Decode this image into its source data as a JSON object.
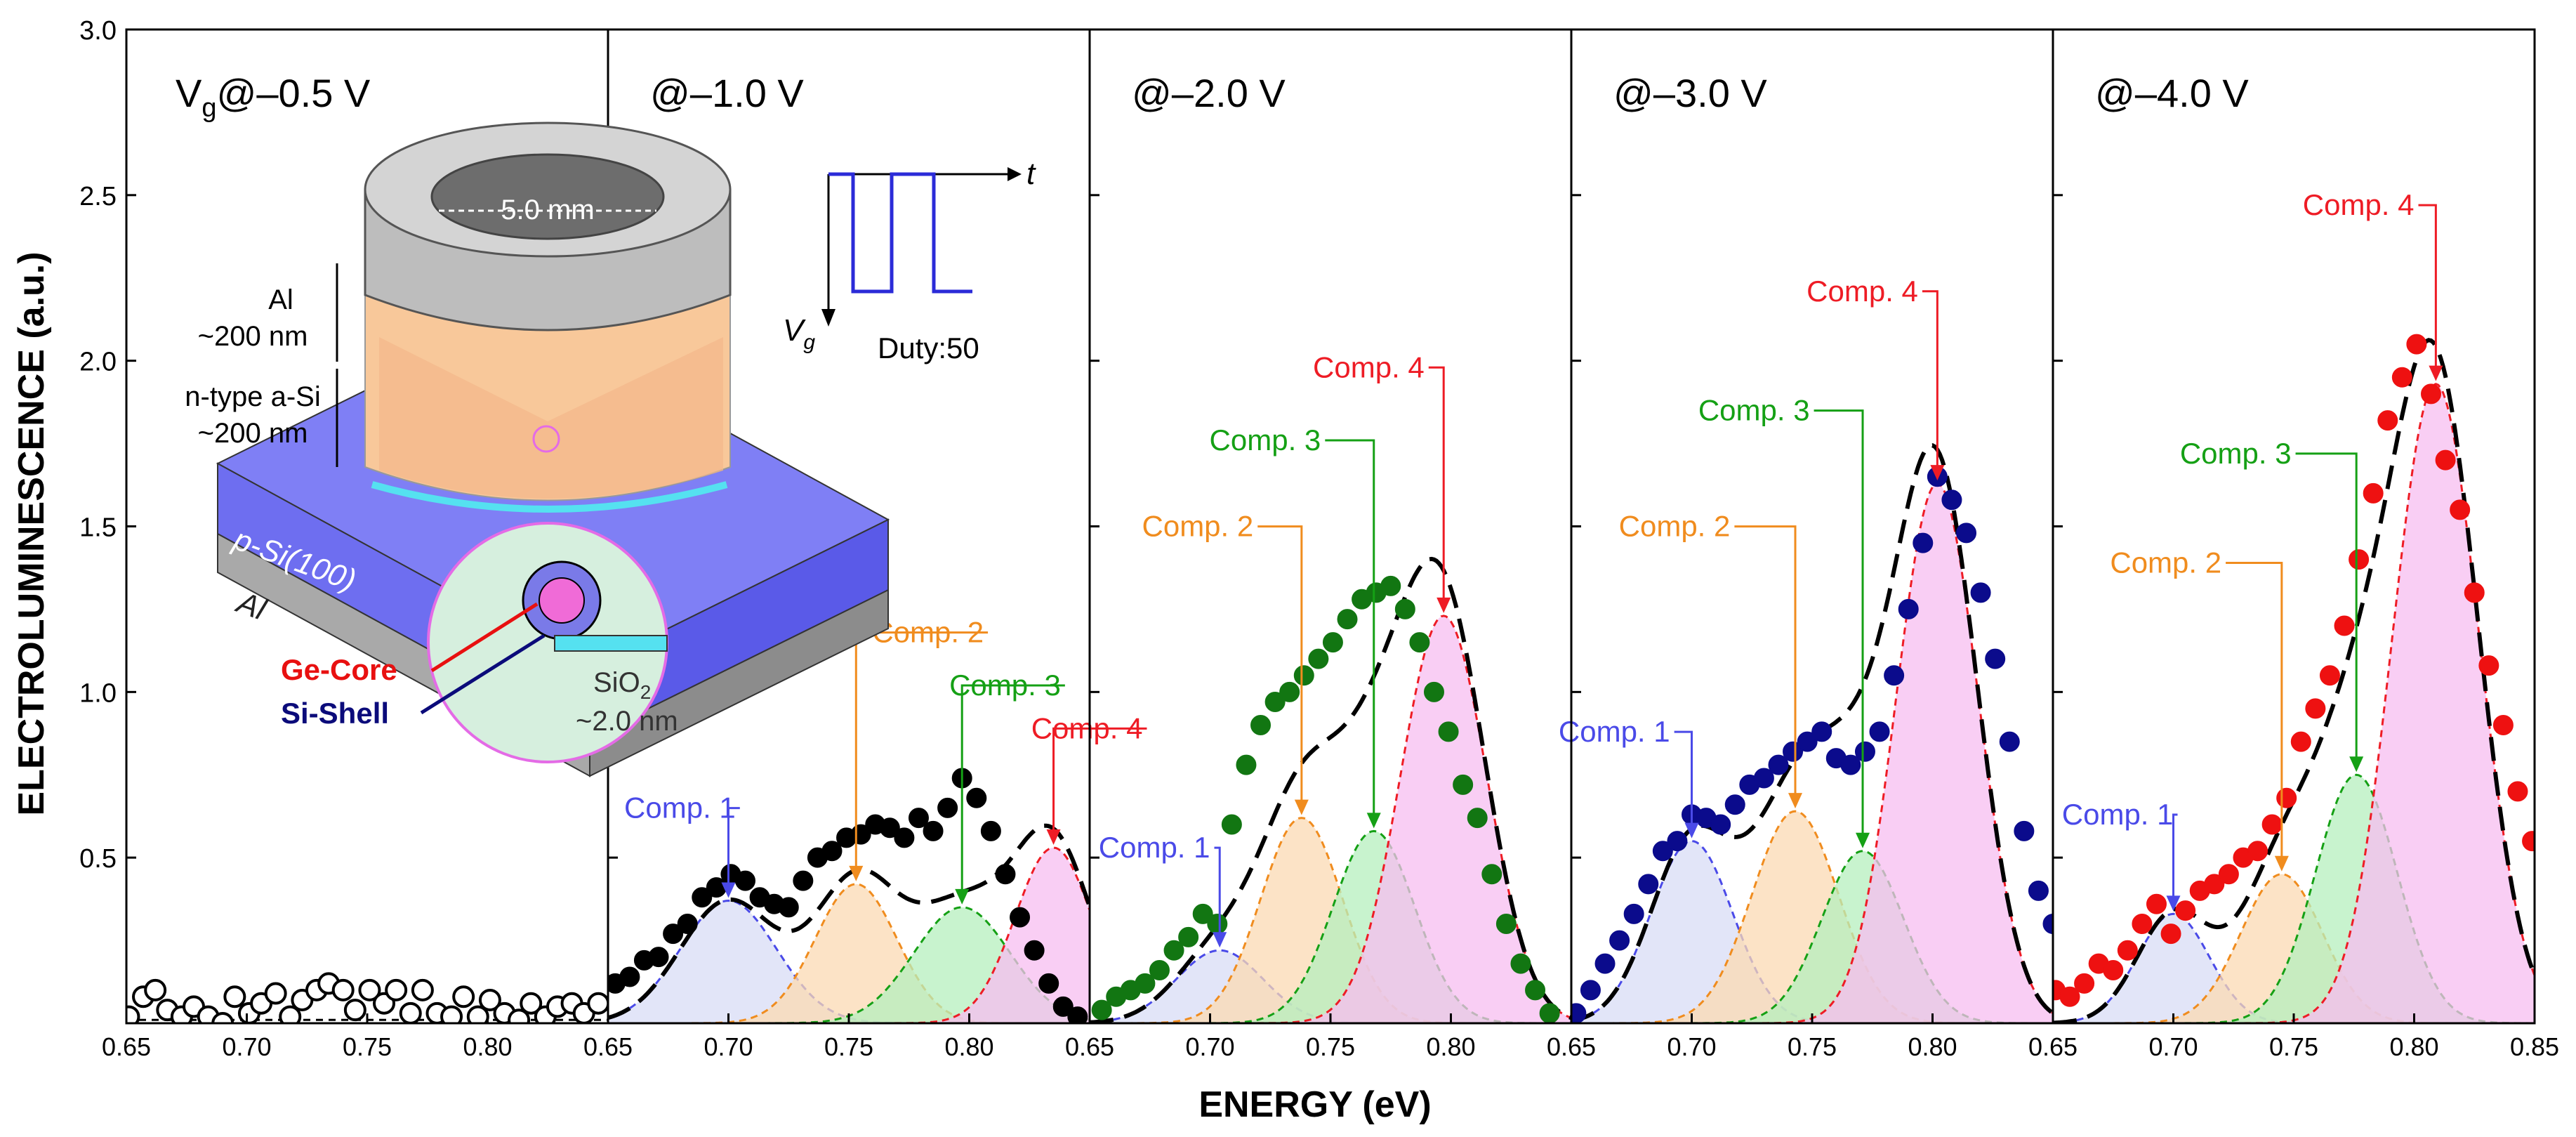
{
  "figure": {
    "ylabel": "ELECTROLUMINESCENCE (a.u.)",
    "xlabel": "ENERGY (eV)",
    "ylim": [
      0,
      3.0
    ],
    "y_ticks": [
      "0.5",
      "1.0",
      "1.5",
      "2.0",
      "2.5",
      "3.0"
    ],
    "x_ticks": [
      "0.65",
      "0.70",
      "0.75",
      "0.80"
    ],
    "x_ticks_last": [
      "0.65",
      "0.70",
      "0.75",
      "0.80",
      "0.85"
    ]
  },
  "colors": {
    "comp1": "#4a4ae8",
    "comp2": "#f08c1e",
    "comp3": "#15a015",
    "comp4": "#ee1c25",
    "fill1": "#d8dcf6",
    "fill2": "#fbd9b3",
    "fill3": "#b6efbd",
    "fill4": "#f7bdf0"
  },
  "inset": {
    "diameter": "5.0 mm",
    "al_top_label": "Al",
    "al_top_thickness": "~200 nm",
    "asi_label": "n-type a-Si",
    "asi_thickness": "~200 nm",
    "substrate": "p-Si(100)",
    "al_bottom": "Al",
    "core": "Ge-Core",
    "shell": "Si-Shell",
    "oxide": "SiO",
    "oxide_sub": "2",
    "oxide_thickness": "~2.0 nm",
    "pulse_t": "t",
    "pulse_v": "V",
    "pulse_v_sub": "g",
    "duty": "Duty:50"
  },
  "chart_data": [
    {
      "type": "scatter",
      "title": "V",
      "title_sub": "g",
      "title_rest": "@–0.5 V",
      "marker": "open",
      "color": "#000000",
      "xlim": [
        0.65,
        0.85
      ],
      "x": [
        0.651,
        0.657,
        0.662,
        0.667,
        0.673,
        0.678,
        0.684,
        0.69,
        0.695,
        0.701,
        0.706,
        0.712,
        0.718,
        0.723,
        0.729,
        0.734,
        0.74,
        0.745,
        0.751,
        0.757,
        0.762,
        0.768,
        0.773,
        0.779,
        0.785,
        0.79,
        0.796,
        0.801,
        0.807,
        0.813,
        0.818,
        0.824,
        0.829,
        0.835,
        0.84,
        0.846
      ],
      "y": [
        0.02,
        0.08,
        0.1,
        0.04,
        0.02,
        0.05,
        0.02,
        0.0,
        0.08,
        0.03,
        0.06,
        0.09,
        0.02,
        0.07,
        0.1,
        0.12,
        0.1,
        0.04,
        0.1,
        0.06,
        0.1,
        0.03,
        0.1,
        0.03,
        0.02,
        0.08,
        0.02,
        0.07,
        0.03,
        0.01,
        0.06,
        0.02,
        0.05,
        0.06,
        0.03,
        0.06
      ],
      "components": []
    },
    {
      "type": "scatter",
      "title_rest": "@–1.0 V",
      "marker": "filled",
      "color": "#000000",
      "xlim": [
        0.65,
        0.85
      ],
      "x": [
        0.653,
        0.659,
        0.665,
        0.671,
        0.677,
        0.683,
        0.689,
        0.695,
        0.701,
        0.707,
        0.713,
        0.719,
        0.725,
        0.731,
        0.737,
        0.743,
        0.749,
        0.755,
        0.761,
        0.767,
        0.773,
        0.779,
        0.785,
        0.791,
        0.797,
        0.803,
        0.809,
        0.815,
        0.821,
        0.827,
        0.833,
        0.839,
        0.845
      ],
      "y": [
        0.12,
        0.14,
        0.19,
        0.2,
        0.27,
        0.3,
        0.38,
        0.41,
        0.45,
        0.43,
        0.38,
        0.36,
        0.35,
        0.43,
        0.5,
        0.52,
        0.56,
        0.57,
        0.6,
        0.59,
        0.56,
        0.62,
        0.58,
        0.65,
        0.74,
        0.68,
        0.58,
        0.45,
        0.32,
        0.22,
        0.12,
        0.05,
        0.02
      ],
      "fit": {
        "offset": 0,
        "scale": 1.0
      },
      "components": [
        {
          "name": "Comp. 1",
          "center": 0.7,
          "height": 0.37,
          "sigma": 0.02,
          "label_x": 0.703,
          "label_y": 0.62
        },
        {
          "name": "Comp. 2",
          "center": 0.753,
          "height": 0.42,
          "sigma": 0.017,
          "label_x": 0.806,
          "label_y": 1.15
        },
        {
          "name": "Comp. 3",
          "center": 0.797,
          "height": 0.35,
          "sigma": 0.02,
          "label_x": 0.838,
          "label_y": 0.99
        },
        {
          "name": "Comp. 4",
          "center": 0.835,
          "height": 0.53,
          "sigma": 0.016,
          "label_x": 0.872,
          "label_y": 0.86
        }
      ]
    },
    {
      "type": "scatter",
      "title_rest": "@–2.0 V",
      "marker": "filled",
      "color": "#127612",
      "xlim": [
        0.65,
        0.85
      ],
      "x": [
        0.655,
        0.661,
        0.667,
        0.673,
        0.679,
        0.685,
        0.691,
        0.697,
        0.703,
        0.709,
        0.715,
        0.721,
        0.727,
        0.733,
        0.739,
        0.745,
        0.751,
        0.757,
        0.763,
        0.769,
        0.775,
        0.781,
        0.787,
        0.793,
        0.799,
        0.805,
        0.811,
        0.817,
        0.823,
        0.829,
        0.835,
        0.841
      ],
      "y": [
        0.04,
        0.08,
        0.1,
        0.12,
        0.16,
        0.22,
        0.26,
        0.33,
        0.3,
        0.6,
        0.78,
        0.9,
        0.97,
        1.0,
        1.05,
        1.1,
        1.15,
        1.22,
        1.28,
        1.3,
        1.32,
        1.25,
        1.15,
        1.0,
        0.88,
        0.72,
        0.62,
        0.45,
        0.3,
        0.18,
        0.1,
        0.03
      ],
      "fit": {
        "offset": 0,
        "scale": 1.0
      },
      "components": [
        {
          "name": "Comp. 1",
          "center": 0.704,
          "height": 0.22,
          "sigma": 0.018,
          "label_x": 0.7,
          "label_y": 0.5
        },
        {
          "name": "Comp. 2",
          "center": 0.738,
          "height": 0.62,
          "sigma": 0.017,
          "label_x": 0.718,
          "label_y": 1.47
        },
        {
          "name": "Comp. 3",
          "center": 0.768,
          "height": 0.58,
          "sigma": 0.017,
          "label_x": 0.746,
          "label_y": 1.73
        },
        {
          "name": "Comp. 4",
          "center": 0.797,
          "height": 1.23,
          "sigma": 0.018,
          "label_x": 0.789,
          "label_y": 1.95
        }
      ]
    },
    {
      "type": "scatter",
      "title_rest": "@–3.0 V",
      "marker": "filled",
      "color": "#0b0b8c",
      "xlim": [
        0.65,
        0.85
      ],
      "x": [
        0.652,
        0.658,
        0.664,
        0.67,
        0.676,
        0.682,
        0.688,
        0.694,
        0.7,
        0.706,
        0.712,
        0.718,
        0.724,
        0.73,
        0.736,
        0.742,
        0.748,
        0.754,
        0.76,
        0.766,
        0.772,
        0.778,
        0.784,
        0.79,
        0.796,
        0.802,
        0.808,
        0.814,
        0.82,
        0.826,
        0.832,
        0.838,
        0.844,
        0.85
      ],
      "y": [
        0.03,
        0.1,
        0.18,
        0.25,
        0.33,
        0.42,
        0.52,
        0.55,
        0.63,
        0.62,
        0.6,
        0.66,
        0.72,
        0.74,
        0.78,
        0.82,
        0.85,
        0.88,
        0.8,
        0.78,
        0.82,
        0.88,
        1.05,
        1.25,
        1.45,
        1.65,
        1.58,
        1.48,
        1.3,
        1.1,
        0.85,
        0.58,
        0.4,
        0.3
      ],
      "fit": {
        "offset": 0,
        "scale": 1.0
      },
      "components": [
        {
          "name": "Comp. 1",
          "center": 0.7,
          "height": 0.55,
          "sigma": 0.017,
          "label_x": 0.691,
          "label_y": 0.85
        },
        {
          "name": "Comp. 2",
          "center": 0.743,
          "height": 0.64,
          "sigma": 0.018,
          "label_x": 0.716,
          "label_y": 1.47
        },
        {
          "name": "Comp. 3",
          "center": 0.771,
          "height": 0.52,
          "sigma": 0.017,
          "label_x": 0.749,
          "label_y": 1.82
        },
        {
          "name": "Comp. 4",
          "center": 0.802,
          "height": 1.63,
          "sigma": 0.017,
          "label_x": 0.794,
          "label_y": 2.18
        }
      ]
    },
    {
      "type": "scatter",
      "title_rest": "@–4.0 V",
      "marker": "filled",
      "color": "#ee1111",
      "xlim": [
        0.65,
        0.85
      ],
      "x": [
        0.651,
        0.657,
        0.663,
        0.669,
        0.675,
        0.681,
        0.687,
        0.693,
        0.699,
        0.705,
        0.711,
        0.717,
        0.723,
        0.729,
        0.735,
        0.741,
        0.747,
        0.753,
        0.759,
        0.765,
        0.771,
        0.777,
        0.783,
        0.789,
        0.795,
        0.801,
        0.807,
        0.813,
        0.819,
        0.825,
        0.831,
        0.837,
        0.843,
        0.849
      ],
      "y": [
        0.1,
        0.08,
        0.12,
        0.18,
        0.16,
        0.22,
        0.3,
        0.36,
        0.27,
        0.34,
        0.4,
        0.42,
        0.45,
        0.5,
        0.52,
        0.6,
        0.68,
        0.85,
        0.95,
        1.05,
        1.2,
        1.4,
        1.6,
        1.82,
        1.95,
        2.05,
        1.9,
        1.7,
        1.55,
        1.3,
        1.08,
        0.9,
        0.7,
        0.55
      ],
      "fit": {
        "offset": 0,
        "scale": 1.0
      },
      "components": [
        {
          "name": "Comp. 1",
          "center": 0.7,
          "height": 0.33,
          "sigma": 0.015,
          "label_x": 0.7,
          "label_y": 0.6
        },
        {
          "name": "Comp. 2",
          "center": 0.745,
          "height": 0.45,
          "sigma": 0.017,
          "label_x": 0.72,
          "label_y": 1.36
        },
        {
          "name": "Comp. 3",
          "center": 0.776,
          "height": 0.75,
          "sigma": 0.017,
          "label_x": 0.749,
          "label_y": 1.69
        },
        {
          "name": "Comp. 4",
          "center": 0.809,
          "height": 1.93,
          "sigma": 0.018,
          "label_x": 0.8,
          "label_y": 2.44
        }
      ]
    }
  ]
}
